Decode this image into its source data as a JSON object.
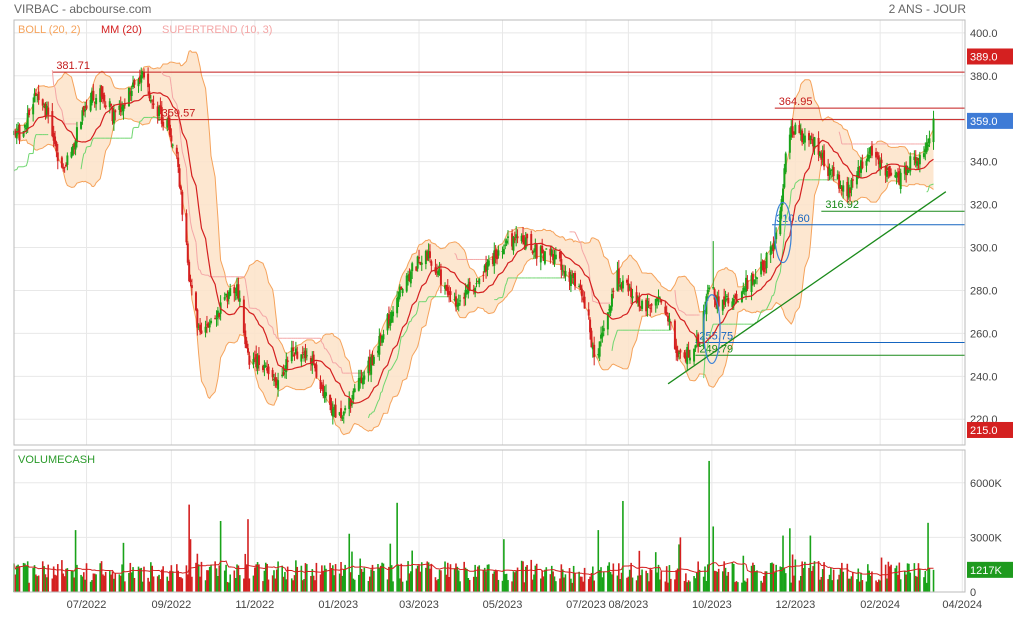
{
  "header": {
    "title": "VIRBAC - abcbourse.com",
    "period": "2 ANS - JOUR"
  },
  "legend": [
    {
      "label": "BOLL (20, 2)",
      "color": "#f5a35c"
    },
    {
      "label": "MM (20)",
      "color": "#d42020"
    },
    {
      "label": "SUPERTREND (10, 3)",
      "color": "#f4a6a6"
    }
  ],
  "colors": {
    "up": "#19a319",
    "down": "#d42020",
    "boll_fill": "#fde3c8",
    "boll_line": "#f5a35c",
    "mm": "#d42020",
    "supertrend_up": "#6fd66f",
    "supertrend_down": "#f4a6a6",
    "resistance": "#c41a1a",
    "support": "#1565c0",
    "trend": "#1a8a1a",
    "volume_ma": "#d42020",
    "ellipse": "#3b82d6",
    "grid": "#e8e8e8",
    "badge_red": "#d42020",
    "badge_blue": "#3e7bd6",
    "badge_green": "#1e9a1e"
  },
  "chart_data": [
    {
      "type": "candlestick",
      "title": "VIRBAC - abcbourse.com",
      "ylim": [
        208,
        406
      ],
      "y_ticks": [
        220,
        240,
        260,
        280,
        300,
        320,
        340,
        360,
        380,
        400
      ],
      "y_tick_labels": [
        "220.0",
        "240.0",
        "260.0",
        "280.0",
        "300.0",
        "320.0",
        "340.0",
        "360.0",
        "380.0",
        "400.0"
      ],
      "x_tick_labels": [
        "07/2022",
        "09/2022",
        "11/2022",
        "01/2023",
        "03/2023",
        "05/2023",
        "07/2023",
        "08/2023",
        "10/2023",
        "12/2023",
        "02/2024",
        "04/2024"
      ],
      "x_tick_dates": [
        "2022-07-01",
        "2022-09-01",
        "2022-11-01",
        "2023-01-01",
        "2023-03-01",
        "2023-05-01",
        "2023-07-01",
        "2023-08-01",
        "2023-10-01",
        "2023-12-01",
        "2024-02-01",
        "2024-04-01"
      ],
      "series_anchors": [
        {
          "date": "2022-05-16",
          "close": 352
        },
        {
          "date": "2022-05-24",
          "close": 372
        },
        {
          "date": "2022-06-03",
          "close": 362
        },
        {
          "date": "2022-06-13",
          "close": 334
        },
        {
          "date": "2022-06-22",
          "close": 350
        },
        {
          "date": "2022-07-01",
          "close": 368
        },
        {
          "date": "2022-07-12",
          "close": 372
        },
        {
          "date": "2022-07-22",
          "close": 360
        },
        {
          "date": "2022-08-01",
          "close": 372
        },
        {
          "date": "2022-08-10",
          "close": 380
        },
        {
          "date": "2022-08-19",
          "close": 368
        },
        {
          "date": "2022-08-29",
          "close": 356
        },
        {
          "date": "2022-09-06",
          "close": 338
        },
        {
          "date": "2022-09-14",
          "close": 286
        },
        {
          "date": "2022-09-21",
          "close": 262
        },
        {
          "date": "2022-09-30",
          "close": 264
        },
        {
          "date": "2022-10-10",
          "close": 275
        },
        {
          "date": "2022-10-19",
          "close": 282
        },
        {
          "date": "2022-10-27",
          "close": 248
        },
        {
          "date": "2022-11-07",
          "close": 246
        },
        {
          "date": "2022-11-18",
          "close": 238
        },
        {
          "date": "2022-11-28",
          "close": 250
        },
        {
          "date": "2022-12-07",
          "close": 252
        },
        {
          "date": "2022-12-16",
          "close": 242
        },
        {
          "date": "2022-12-26",
          "close": 226
        },
        {
          "date": "2023-01-04",
          "close": 220
        },
        {
          "date": "2023-01-16",
          "close": 236
        },
        {
          "date": "2023-01-26",
          "close": 248
        },
        {
          "date": "2023-02-06",
          "close": 266
        },
        {
          "date": "2023-02-16",
          "close": 282
        },
        {
          "date": "2023-02-27",
          "close": 292
        },
        {
          "date": "2023-03-08",
          "close": 296
        },
        {
          "date": "2023-03-20",
          "close": 282
        },
        {
          "date": "2023-03-30",
          "close": 274
        },
        {
          "date": "2023-04-11",
          "close": 284
        },
        {
          "date": "2023-04-21",
          "close": 292
        },
        {
          "date": "2023-05-03",
          "close": 302
        },
        {
          "date": "2023-05-15",
          "close": 305
        },
        {
          "date": "2023-05-26",
          "close": 298
        },
        {
          "date": "2023-06-06",
          "close": 296
        },
        {
          "date": "2023-06-15",
          "close": 290
        },
        {
          "date": "2023-06-26",
          "close": 282
        },
        {
          "date": "2023-07-03",
          "close": 268
        },
        {
          "date": "2023-07-07",
          "close": 246
        },
        {
          "date": "2023-07-14",
          "close": 260
        },
        {
          "date": "2023-07-24",
          "close": 286
        },
        {
          "date": "2023-08-02",
          "close": 280
        },
        {
          "date": "2023-08-11",
          "close": 272
        },
        {
          "date": "2023-08-22",
          "close": 278
        },
        {
          "date": "2023-08-31",
          "close": 264
        },
        {
          "date": "2023-09-08",
          "close": 248
        },
        {
          "date": "2023-09-15",
          "close": 251
        },
        {
          "date": "2023-09-22",
          "close": 256
        },
        {
          "date": "2023-09-29",
          "close": 282
        },
        {
          "date": "2023-10-06",
          "close": 274
        },
        {
          "date": "2023-10-17",
          "close": 276
        },
        {
          "date": "2023-10-27",
          "close": 284
        },
        {
          "date": "2023-11-08",
          "close": 292
        },
        {
          "date": "2023-11-17",
          "close": 304
        },
        {
          "date": "2023-11-22",
          "close": 330
        },
        {
          "date": "2023-11-27",
          "close": 356
        },
        {
          "date": "2023-12-06",
          "close": 352
        },
        {
          "date": "2023-12-15",
          "close": 348
        },
        {
          "date": "2023-12-27",
          "close": 334
        },
        {
          "date": "2024-01-08",
          "close": 326
        },
        {
          "date": "2024-01-17",
          "close": 338
        },
        {
          "date": "2024-01-26",
          "close": 344
        },
        {
          "date": "2024-02-06",
          "close": 336
        },
        {
          "date": "2024-02-15",
          "close": 332
        },
        {
          "date": "2024-02-26",
          "close": 342
        },
        {
          "date": "2024-03-05",
          "close": 344
        },
        {
          "date": "2024-03-11",
          "close": 358
        }
      ],
      "horizontal_levels": [
        {
          "value": 381.71,
          "label": "381.71",
          "kind": "resistance",
          "from_date": "2022-06-06"
        },
        {
          "value": 359.57,
          "label": "359.57",
          "kind": "resistance",
          "from_date": "2022-08-22"
        },
        {
          "value": 364.95,
          "label": "364.95",
          "kind": "resistance",
          "from_date": "2023-11-16"
        },
        {
          "value": 310.6,
          "label": "310.60",
          "kind": "support",
          "from_date": "2023-11-14"
        },
        {
          "value": 316.92,
          "label": "316.92",
          "kind": "trend",
          "from_date": "2023-12-20"
        },
        {
          "value": 255.75,
          "label": "255.75",
          "kind": "support",
          "from_date": "2023-09-19"
        },
        {
          "value": 249.79,
          "label": "249.79",
          "kind": "trend",
          "from_date": "2023-09-19"
        }
      ],
      "trendline": {
        "from": {
          "date": "2023-08-30",
          "value": 236.5
        },
        "to": {
          "date": "2024-03-20",
          "value": 326
        }
      },
      "ellipses": [
        {
          "date": "2023-10-01",
          "value": 262,
          "span_days": 6,
          "span_value": 16
        },
        {
          "date": "2023-11-22",
          "value": 307,
          "span_days": 6,
          "span_value": 14
        }
      ],
      "right_badges": [
        {
          "value": 389.0,
          "label": "389.0",
          "kind": "resistance"
        },
        {
          "value": 359.0,
          "label": "359.0",
          "kind": "last"
        },
        {
          "value": 215.0,
          "label": "215.0",
          "kind": "floor"
        }
      ]
    },
    {
      "type": "bar",
      "title": "VOLUMECASH",
      "ylim": [
        0,
        7800
      ],
      "y_ticks": [
        0,
        3000,
        6000
      ],
      "y_tick_labels": [
        "0",
        "3000K",
        "6000K"
      ],
      "right_badge": {
        "value": 1217,
        "label": "1217K"
      },
      "volume_spikes": [
        {
          "date": "2022-06-23",
          "value": 3400
        },
        {
          "date": "2022-07-28",
          "value": 2700
        },
        {
          "date": "2022-09-14",
          "value": 4800
        },
        {
          "date": "2022-09-15",
          "value": 2900
        },
        {
          "date": "2022-10-07",
          "value": 3900
        },
        {
          "date": "2022-10-27",
          "value": 4000
        },
        {
          "date": "2023-01-09",
          "value": 3200
        },
        {
          "date": "2023-02-13",
          "value": 4900
        },
        {
          "date": "2023-05-02",
          "value": 2900
        },
        {
          "date": "2023-07-10",
          "value": 3400
        },
        {
          "date": "2023-07-28",
          "value": 5000
        },
        {
          "date": "2023-09-08",
          "value": 3000
        },
        {
          "date": "2023-09-29",
          "value": 7200
        },
        {
          "date": "2023-10-02",
          "value": 3600
        },
        {
          "date": "2023-11-22",
          "value": 3100
        },
        {
          "date": "2023-11-27",
          "value": 3500
        },
        {
          "date": "2023-12-12",
          "value": 3100
        },
        {
          "date": "2024-03-07",
          "value": 3800
        }
      ]
    }
  ]
}
